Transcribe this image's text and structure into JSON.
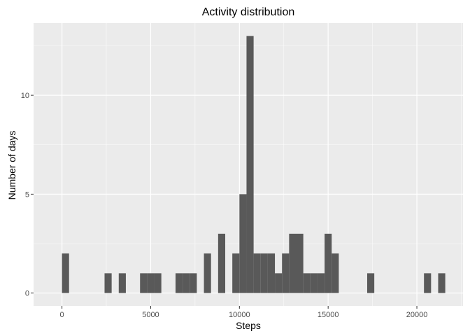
{
  "chart_data": {
    "type": "bar",
    "title": "Activity distribution",
    "xlabel": "Steps",
    "ylabel": "Number of days",
    "bin_width": 400,
    "x_ticks": [
      0,
      5000,
      10000,
      15000,
      20000
    ],
    "y_ticks": [
      0,
      5,
      10
    ],
    "xlim": [
      -1600,
      22600
    ],
    "ylim": [
      -0.65,
      13.65
    ],
    "grid": true,
    "bars": [
      {
        "start": 0,
        "end": 400,
        "count": 2
      },
      {
        "start": 2400,
        "end": 2800,
        "count": 1
      },
      {
        "start": 3200,
        "end": 3600,
        "count": 1
      },
      {
        "start": 4400,
        "end": 4800,
        "count": 1
      },
      {
        "start": 4800,
        "end": 5200,
        "count": 1
      },
      {
        "start": 5200,
        "end": 5600,
        "count": 1
      },
      {
        "start": 6400,
        "end": 6800,
        "count": 1
      },
      {
        "start": 6800,
        "end": 7200,
        "count": 1
      },
      {
        "start": 7200,
        "end": 7600,
        "count": 1
      },
      {
        "start": 8000,
        "end": 8400,
        "count": 2
      },
      {
        "start": 8800,
        "end": 9200,
        "count": 3
      },
      {
        "start": 9600,
        "end": 10000,
        "count": 2
      },
      {
        "start": 10000,
        "end": 10400,
        "count": 5
      },
      {
        "start": 10400,
        "end": 10800,
        "count": 13
      },
      {
        "start": 10800,
        "end": 11200,
        "count": 2
      },
      {
        "start": 11200,
        "end": 11600,
        "count": 2
      },
      {
        "start": 11600,
        "end": 12000,
        "count": 2
      },
      {
        "start": 12000,
        "end": 12400,
        "count": 1
      },
      {
        "start": 12400,
        "end": 12800,
        "count": 2
      },
      {
        "start": 12800,
        "end": 13200,
        "count": 3
      },
      {
        "start": 13200,
        "end": 13600,
        "count": 3
      },
      {
        "start": 13600,
        "end": 14000,
        "count": 1
      },
      {
        "start": 14000,
        "end": 14400,
        "count": 1
      },
      {
        "start": 14400,
        "end": 14800,
        "count": 1
      },
      {
        "start": 14800,
        "end": 15200,
        "count": 3
      },
      {
        "start": 15200,
        "end": 15600,
        "count": 2
      },
      {
        "start": 17200,
        "end": 17600,
        "count": 1
      },
      {
        "start": 20400,
        "end": 20800,
        "count": 1
      },
      {
        "start": 21200,
        "end": 21600,
        "count": 1
      }
    ],
    "colors": {
      "panel": "#ebebeb",
      "grid_major": "#ffffff",
      "bar": "#595959",
      "tick": "#333333"
    }
  }
}
